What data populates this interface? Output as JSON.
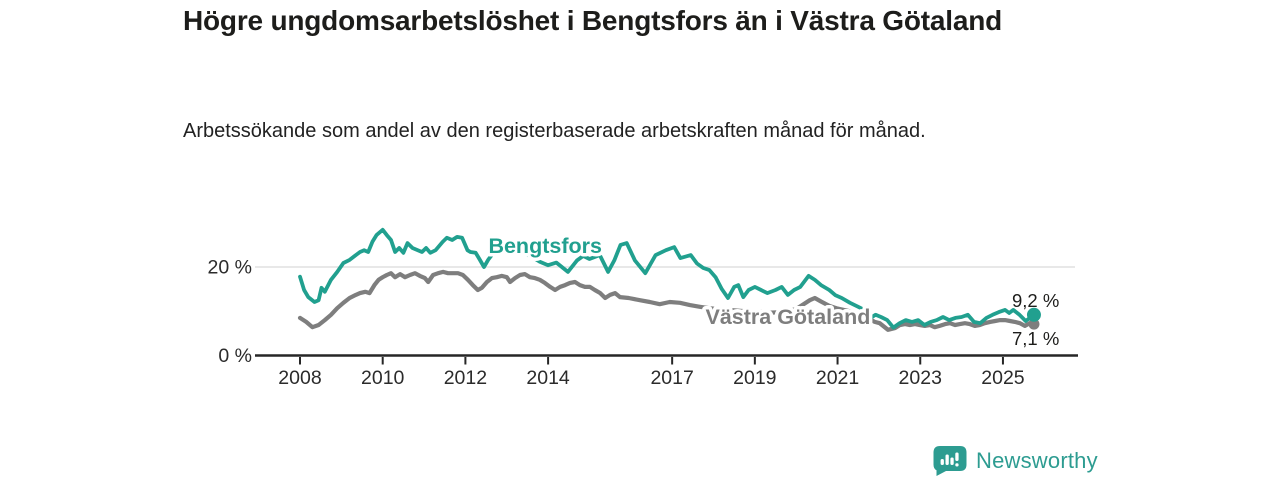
{
  "header": {
    "title": "Högre ungdomsarbetslöshet i Bengtsfors än i Västra Götaland",
    "subtitle": "Arbetssökande som andel av den registerbaserade arbetskraften månad för månad."
  },
  "footer": {
    "brand": "Newsworthy"
  },
  "colors": {
    "accent_teal": "#21a08f",
    "series_gray": "#7e7e7e",
    "axis": "#262626",
    "gridline": "#d9d9d9",
    "text_dark": "#1d1d1b",
    "brand_teal": "#2d9c91"
  },
  "chart_data": {
    "type": "line",
    "title": "Högre ungdomsarbetslöshet i Bengtsfors än i Västra Götaland",
    "subtitle": "Arbetssökande som andel av den registerbaserade arbetskraften månad för månad.",
    "unit": "%",
    "xlim": [
      2006.9,
      2026.8
    ],
    "ylim": [
      0,
      33
    ],
    "grid": "single-horizontal-at-20",
    "legend_position": "inline-labels",
    "x_ticks": [
      {
        "value": 2008,
        "label": "2008"
      },
      {
        "value": 2010,
        "label": "2010"
      },
      {
        "value": 2012,
        "label": "2012"
      },
      {
        "value": 2014,
        "label": "2014"
      },
      {
        "value": 2017,
        "label": "2017"
      },
      {
        "value": 2019,
        "label": "2019"
      },
      {
        "value": 2021,
        "label": "2021"
      },
      {
        "value": 2023,
        "label": "2023"
      },
      {
        "value": 2025,
        "label": "2025"
      }
    ],
    "y_ticks": [
      {
        "value": 0,
        "label": "0 %"
      },
      {
        "value": 20,
        "label": "20 %"
      }
    ],
    "series": [
      {
        "name": "Västra Götaland",
        "color": "#7e7e7e",
        "stroke_width": 4.2,
        "end_label": "7,1 %",
        "end_value": 7.1,
        "end_dot_radius": 5.5,
        "label_anchor": {
          "x": 2019.8,
          "y": 8.7
        },
        "points": [
          [
            2008.0,
            8.5
          ],
          [
            2008.15,
            7.6
          ],
          [
            2008.3,
            6.4
          ],
          [
            2008.45,
            6.9
          ],
          [
            2008.6,
            8.0
          ],
          [
            2008.75,
            9.2
          ],
          [
            2008.9,
            10.7
          ],
          [
            2009.05,
            11.9
          ],
          [
            2009.2,
            13.0
          ],
          [
            2009.35,
            13.7
          ],
          [
            2009.45,
            14.1
          ],
          [
            2009.58,
            14.4
          ],
          [
            2009.68,
            14.1
          ],
          [
            2009.8,
            15.9
          ],
          [
            2009.9,
            17.1
          ],
          [
            2010.0,
            17.7
          ],
          [
            2010.1,
            18.2
          ],
          [
            2010.2,
            18.6
          ],
          [
            2010.3,
            17.7
          ],
          [
            2010.42,
            18.4
          ],
          [
            2010.54,
            17.7
          ],
          [
            2010.66,
            18.2
          ],
          [
            2010.78,
            18.6
          ],
          [
            2010.9,
            18.0
          ],
          [
            2011.02,
            17.5
          ],
          [
            2011.1,
            16.6
          ],
          [
            2011.22,
            18.2
          ],
          [
            2011.34,
            18.6
          ],
          [
            2011.46,
            18.9
          ],
          [
            2011.58,
            18.6
          ],
          [
            2011.82,
            18.6
          ],
          [
            2011.94,
            18.2
          ],
          [
            2012.06,
            17.1
          ],
          [
            2012.18,
            15.9
          ],
          [
            2012.3,
            14.8
          ],
          [
            2012.4,
            15.3
          ],
          [
            2012.52,
            16.6
          ],
          [
            2012.64,
            17.5
          ],
          [
            2012.76,
            17.7
          ],
          [
            2012.88,
            18.0
          ],
          [
            2013.0,
            17.7
          ],
          [
            2013.08,
            16.6
          ],
          [
            2013.2,
            17.5
          ],
          [
            2013.32,
            18.2
          ],
          [
            2013.44,
            18.4
          ],
          [
            2013.56,
            17.7
          ],
          [
            2013.68,
            17.5
          ],
          [
            2013.8,
            17.1
          ],
          [
            2013.92,
            16.4
          ],
          [
            2014.05,
            15.5
          ],
          [
            2014.17,
            14.8
          ],
          [
            2014.29,
            15.5
          ],
          [
            2014.41,
            15.9
          ],
          [
            2014.53,
            16.4
          ],
          [
            2014.65,
            16.6
          ],
          [
            2014.77,
            15.9
          ],
          [
            2014.89,
            15.5
          ],
          [
            2015.01,
            15.5
          ],
          [
            2015.13,
            14.8
          ],
          [
            2015.26,
            14.1
          ],
          [
            2015.38,
            13.0
          ],
          [
            2015.5,
            13.7
          ],
          [
            2015.62,
            14.1
          ],
          [
            2015.74,
            13.2
          ],
          [
            2015.95,
            13.0
          ],
          [
            2016.22,
            12.5
          ],
          [
            2016.46,
            12.1
          ],
          [
            2016.7,
            11.6
          ],
          [
            2016.94,
            12.1
          ],
          [
            2017.19,
            11.9
          ],
          [
            2017.43,
            11.4
          ],
          [
            2017.67,
            11.0
          ],
          [
            2017.9,
            10.7
          ],
          [
            2018.2,
            10.4
          ],
          [
            2018.5,
            10.2
          ],
          [
            2018.8,
            10.0
          ],
          [
            2019.1,
            9.9
          ],
          [
            2019.4,
            9.7
          ],
          [
            2019.7,
            9.8
          ],
          [
            2020.0,
            10.5
          ],
          [
            2020.33,
            12.5
          ],
          [
            2020.45,
            13.0
          ],
          [
            2020.6,
            12.2
          ],
          [
            2020.8,
            11.2
          ],
          [
            2021.0,
            10.6
          ],
          [
            2021.3,
            10.0
          ],
          [
            2021.6,
            9.2
          ],
          [
            2021.9,
            7.6
          ],
          [
            2022.02,
            7.3
          ],
          [
            2022.22,
            5.8
          ],
          [
            2022.39,
            6.2
          ],
          [
            2022.51,
            6.9
          ],
          [
            2022.63,
            7.1
          ],
          [
            2022.75,
            6.9
          ],
          [
            2022.87,
            7.1
          ],
          [
            2022.99,
            6.9
          ],
          [
            2023.11,
            6.7
          ],
          [
            2023.23,
            6.9
          ],
          [
            2023.35,
            6.4
          ],
          [
            2023.47,
            6.7
          ],
          [
            2023.6,
            7.1
          ],
          [
            2023.72,
            7.3
          ],
          [
            2023.84,
            6.9
          ],
          [
            2023.96,
            7.1
          ],
          [
            2024.08,
            7.3
          ],
          [
            2024.2,
            7.1
          ],
          [
            2024.32,
            6.7
          ],
          [
            2024.44,
            6.9
          ],
          [
            2024.56,
            7.3
          ],
          [
            2024.69,
            7.6
          ],
          [
            2024.81,
            7.8
          ],
          [
            2024.93,
            8.0
          ],
          [
            2025.05,
            8.0
          ],
          [
            2025.17,
            7.8
          ],
          [
            2025.29,
            7.6
          ],
          [
            2025.41,
            7.3
          ],
          [
            2025.53,
            6.7
          ],
          [
            2025.65,
            7.3
          ],
          [
            2025.75,
            7.1
          ]
        ]
      },
      {
        "name": "Bengtsfors",
        "color": "#21a08f",
        "stroke_width": 3.8,
        "end_label": "9,2 %",
        "end_value": 9.2,
        "end_dot_radius": 7,
        "label_anchor": {
          "x": 2013.93,
          "y": 24.8
        },
        "points": [
          [
            2008.0,
            17.8
          ],
          [
            2008.1,
            14.8
          ],
          [
            2008.2,
            13.2
          ],
          [
            2008.35,
            12.1
          ],
          [
            2008.45,
            12.5
          ],
          [
            2008.52,
            15.3
          ],
          [
            2008.6,
            14.4
          ],
          [
            2008.75,
            17.1
          ],
          [
            2008.9,
            18.9
          ],
          [
            2009.05,
            20.9
          ],
          [
            2009.2,
            21.6
          ],
          [
            2009.35,
            22.7
          ],
          [
            2009.45,
            23.4
          ],
          [
            2009.55,
            23.8
          ],
          [
            2009.65,
            23.4
          ],
          [
            2009.75,
            25.7
          ],
          [
            2009.85,
            27.2
          ],
          [
            2010.0,
            28.4
          ],
          [
            2010.1,
            27.2
          ],
          [
            2010.2,
            26.1
          ],
          [
            2010.3,
            23.4
          ],
          [
            2010.4,
            24.3
          ],
          [
            2010.5,
            23.2
          ],
          [
            2010.6,
            25.4
          ],
          [
            2010.72,
            24.3
          ],
          [
            2010.85,
            23.8
          ],
          [
            2010.95,
            23.4
          ],
          [
            2011.05,
            24.3
          ],
          [
            2011.15,
            23.2
          ],
          [
            2011.28,
            23.8
          ],
          [
            2011.45,
            25.7
          ],
          [
            2011.55,
            26.6
          ],
          [
            2011.68,
            26.1
          ],
          [
            2011.8,
            26.8
          ],
          [
            2011.92,
            26.6
          ],
          [
            2012.05,
            23.8
          ],
          [
            2012.12,
            23.4
          ],
          [
            2012.25,
            23.2
          ],
          [
            2012.35,
            21.6
          ],
          [
            2012.45,
            20.0
          ],
          [
            2012.55,
            21.6
          ],
          [
            2012.68,
            23.2
          ],
          [
            2012.85,
            24.2
          ],
          [
            2013.0,
            24.6
          ],
          [
            2013.2,
            23.8
          ],
          [
            2013.4,
            23.2
          ],
          [
            2013.6,
            22.3
          ],
          [
            2013.8,
            21.2
          ],
          [
            2014.0,
            20.4
          ],
          [
            2014.2,
            21.0
          ],
          [
            2014.48,
            18.9
          ],
          [
            2014.7,
            21.5
          ],
          [
            2014.85,
            22.5
          ],
          [
            2015.0,
            21.8
          ],
          [
            2015.25,
            22.7
          ],
          [
            2015.45,
            18.9
          ],
          [
            2015.6,
            21.5
          ],
          [
            2015.75,
            25.0
          ],
          [
            2015.9,
            25.4
          ],
          [
            2016.1,
            21.5
          ],
          [
            2016.35,
            18.6
          ],
          [
            2016.6,
            22.7
          ],
          [
            2016.85,
            23.8
          ],
          [
            2017.05,
            24.5
          ],
          [
            2017.2,
            22.0
          ],
          [
            2017.45,
            22.7
          ],
          [
            2017.6,
            20.8
          ],
          [
            2017.75,
            19.8
          ],
          [
            2017.9,
            19.3
          ],
          [
            2018.05,
            17.7
          ],
          [
            2018.2,
            15.0
          ],
          [
            2018.35,
            13.0
          ],
          [
            2018.5,
            15.5
          ],
          [
            2018.6,
            15.9
          ],
          [
            2018.72,
            13.2
          ],
          [
            2018.85,
            14.8
          ],
          [
            2019.0,
            15.5
          ],
          [
            2019.15,
            14.8
          ],
          [
            2019.3,
            14.1
          ],
          [
            2019.5,
            14.8
          ],
          [
            2019.65,
            15.5
          ],
          [
            2019.8,
            13.7
          ],
          [
            2019.95,
            14.8
          ],
          [
            2020.1,
            15.5
          ],
          [
            2020.3,
            18.0
          ],
          [
            2020.45,
            17.1
          ],
          [
            2020.6,
            15.9
          ],
          [
            2020.8,
            14.8
          ],
          [
            2020.95,
            13.6
          ],
          [
            2021.1,
            13.0
          ],
          [
            2021.3,
            11.9
          ],
          [
            2021.5,
            11.0
          ],
          [
            2021.65,
            10.3
          ],
          [
            2021.8,
            8.5
          ],
          [
            2021.92,
            9.2
          ],
          [
            2022.05,
            8.7
          ],
          [
            2022.2,
            8.0
          ],
          [
            2022.35,
            6.3
          ],
          [
            2022.5,
            7.3
          ],
          [
            2022.65,
            8.0
          ],
          [
            2022.8,
            7.6
          ],
          [
            2022.95,
            8.0
          ],
          [
            2023.1,
            6.9
          ],
          [
            2023.25,
            7.6
          ],
          [
            2023.4,
            8.0
          ],
          [
            2023.55,
            8.7
          ],
          [
            2023.7,
            8.0
          ],
          [
            2023.85,
            8.5
          ],
          [
            2024.0,
            8.7
          ],
          [
            2024.15,
            9.2
          ],
          [
            2024.3,
            7.6
          ],
          [
            2024.45,
            7.3
          ],
          [
            2024.6,
            8.5
          ],
          [
            2024.75,
            9.2
          ],
          [
            2024.9,
            9.8
          ],
          [
            2025.05,
            10.3
          ],
          [
            2025.15,
            9.6
          ],
          [
            2025.25,
            10.3
          ],
          [
            2025.4,
            9.2
          ],
          [
            2025.55,
            7.8
          ],
          [
            2025.75,
            9.2
          ]
        ]
      }
    ]
  }
}
